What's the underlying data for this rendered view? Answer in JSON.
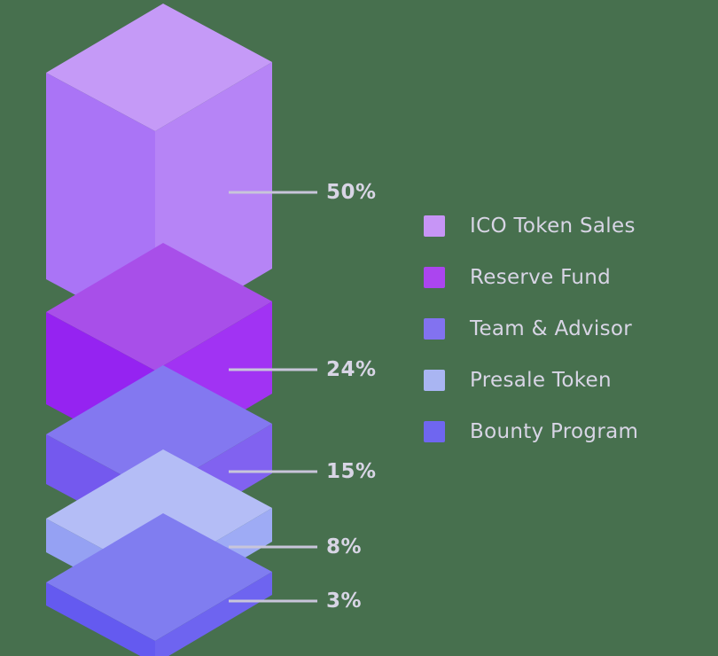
{
  "colors": {
    "background": "#47704e",
    "text": "#d8d5e5",
    "callout_line": "#c8c5da"
  },
  "chart_data": {
    "type": "bar",
    "variant": "isometric-3d-stacked-tower",
    "title": "",
    "unit": "%",
    "categories": [
      "ICO Token Sales",
      "Reserve Fund",
      "Team & Advisor",
      "Presale Token",
      "Bounty Program"
    ],
    "values": [
      50,
      24,
      15,
      8,
      3
    ],
    "legend_position": "right",
    "series": [
      {
        "name": "ICO Token Sales",
        "value": 50,
        "label": "50%",
        "swatch": "#c795f6",
        "colors": {
          "top": "#c59af7",
          "left": "#aa74f6",
          "right": "#b684f6"
        }
      },
      {
        "name": "Reserve Fund",
        "value": 24,
        "label": "24%",
        "swatch": "#ab45ef",
        "colors": {
          "top": "#a84fe9",
          "left": "#9523f1",
          "right": "#a133f3"
        }
      },
      {
        "name": "Team & Advisor",
        "value": 15,
        "label": "15%",
        "swatch": "#8272f0",
        "colors": {
          "top": "#8378f0",
          "left": "#7459ee",
          "right": "#8162f0"
        }
      },
      {
        "name": "Presale Token",
        "value": 8,
        "label": "8%",
        "swatch": "#a9b5f2",
        "colors": {
          "top": "#b4bdf6",
          "left": "#95a1f3",
          "right": "#9eabf5"
        }
      },
      {
        "name": "Bounty Program",
        "value": 3,
        "label": "3%",
        "swatch": "#6f66f0",
        "colors": {
          "top": "#807df0",
          "left": "#645af0",
          "right": "#6e64f0"
        }
      }
    ]
  }
}
